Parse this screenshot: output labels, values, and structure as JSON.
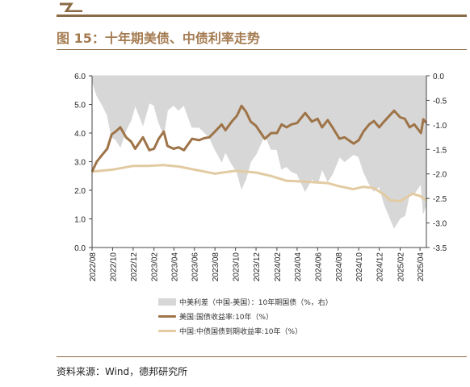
{
  "title": "图 15：十年期美债、中债利率走势",
  "source": "资料来源：Wind，德邦研究所",
  "colors": {
    "spread_fill": "#d7d7d7",
    "us_line": "#9e7448",
    "cn_line": "#e2cba2",
    "title": "#a57c52",
    "rule": "#8a6a44"
  },
  "legend": [
    {
      "key": "spread",
      "label": "中美利差（中国-美国）：10年期国债（%，右）"
    },
    {
      "key": "us",
      "label": "美国:国债收益率:10年（%）"
    },
    {
      "key": "cn",
      "label": "中国:中债国债到期收益率:10年（%）"
    }
  ],
  "chart_data": {
    "type": "line",
    "x_ticks": [
      "2022/08",
      "2022/10",
      "2022/12",
      "2023/02",
      "2023/04",
      "2023/06",
      "2023/08",
      "2023/10",
      "2023/12",
      "2024/02",
      "2024/04",
      "2024/06",
      "2024/08",
      "2024/10",
      "2024/12",
      "2025/02",
      "2025/04"
    ],
    "x_range": [
      "2022-08-01",
      "2025-04-20"
    ],
    "y_left": {
      "min": 0,
      "max": 6,
      "ticks": [
        "0.0",
        "1.0",
        "2.0",
        "3.0",
        "4.0",
        "5.0",
        "6.0"
      ]
    },
    "y_right": {
      "min": -3.5,
      "max": 0,
      "ticks": [
        "0.0",
        "-0.5",
        "-1.0",
        "-1.5",
        "-2.0",
        "-2.5",
        "-3.0",
        "-3.5"
      ]
    },
    "grid": false,
    "legend_position": "bottom",
    "series": [
      {
        "name": "美国:国债收益率:10年（%）",
        "axis": "left",
        "kind": "line",
        "x": [
          "2022-08-01",
          "2022-08-15",
          "2022-09-01",
          "2022-09-15",
          "2022-09-28",
          "2022-10-10",
          "2022-10-24",
          "2022-11-10",
          "2022-11-25",
          "2022-12-07",
          "2022-12-30",
          "2023-01-18",
          "2023-02-01",
          "2023-02-15",
          "2023-03-02",
          "2023-03-13",
          "2023-03-31",
          "2023-04-15",
          "2023-05-01",
          "2023-05-25",
          "2023-06-15",
          "2023-06-30",
          "2023-07-15",
          "2023-08-01",
          "2023-08-21",
          "2023-09-01",
          "2023-09-20",
          "2023-10-05",
          "2023-10-19",
          "2023-11-01",
          "2023-11-15",
          "2023-12-01",
          "2023-12-27",
          "2024-01-15",
          "2024-02-01",
          "2024-02-15",
          "2024-03-01",
          "2024-03-15",
          "2024-04-01",
          "2024-04-25",
          "2024-05-15",
          "2024-06-01",
          "2024-06-14",
          "2024-07-01",
          "2024-07-15",
          "2024-08-05",
          "2024-08-20",
          "2024-09-16",
          "2024-10-01",
          "2024-10-15",
          "2024-11-01",
          "2024-11-15",
          "2024-12-01",
          "2024-12-15",
          "2025-01-14",
          "2025-02-01",
          "2025-02-15",
          "2025-03-01",
          "2025-03-15",
          "2025-04-04",
          "2025-04-11",
          "2025-04-20"
        ],
        "y": [
          2.65,
          3.0,
          3.25,
          3.45,
          3.95,
          4.05,
          4.2,
          3.85,
          3.7,
          3.45,
          3.85,
          3.4,
          3.45,
          3.8,
          4.05,
          3.55,
          3.45,
          3.5,
          3.4,
          3.8,
          3.75,
          3.82,
          3.85,
          4.05,
          4.3,
          4.1,
          4.4,
          4.6,
          4.95,
          4.75,
          4.4,
          4.25,
          3.8,
          4.0,
          4.0,
          4.3,
          4.2,
          4.3,
          4.35,
          4.7,
          4.4,
          4.5,
          4.2,
          4.45,
          4.2,
          3.8,
          3.85,
          3.63,
          3.75,
          4.05,
          4.3,
          4.42,
          4.2,
          4.4,
          4.78,
          4.55,
          4.5,
          4.2,
          4.3,
          4.0,
          4.48,
          4.35
        ]
      },
      {
        "name": "中国:中债国债到期收益率:10年（%）",
        "axis": "left",
        "kind": "line",
        "x": [
          "2022-08-01",
          "2022-10-01",
          "2022-12-01",
          "2023-01-15",
          "2023-03-01",
          "2023-04-15",
          "2023-06-01",
          "2023-08-01",
          "2023-10-01",
          "2023-12-01",
          "2024-01-15",
          "2024-03-01",
          "2024-05-01",
          "2024-07-01",
          "2024-08-01",
          "2024-09-15",
          "2024-10-15",
          "2024-11-15",
          "2024-12-15",
          "2025-01-02",
          "2025-02-01",
          "2025-03-10",
          "2025-04-01",
          "2025-04-20"
        ],
        "y": [
          2.65,
          2.72,
          2.85,
          2.85,
          2.88,
          2.83,
          2.72,
          2.58,
          2.68,
          2.62,
          2.5,
          2.33,
          2.3,
          2.25,
          2.15,
          2.04,
          2.12,
          2.08,
          1.85,
          1.65,
          1.62,
          1.88,
          1.8,
          1.65
        ]
      },
      {
        "name": "中美利差（中国-美国）：10年期国债（%，右）",
        "axis": "right",
        "kind": "area",
        "x": [
          "2022-08-01",
          "2022-08-15",
          "2022-09-01",
          "2022-09-15",
          "2022-09-28",
          "2022-10-10",
          "2022-10-24",
          "2022-11-10",
          "2022-11-25",
          "2022-12-07",
          "2022-12-30",
          "2023-01-18",
          "2023-02-01",
          "2023-02-15",
          "2023-03-02",
          "2023-03-13",
          "2023-03-31",
          "2023-04-15",
          "2023-05-01",
          "2023-05-25",
          "2023-06-15",
          "2023-06-30",
          "2023-07-15",
          "2023-08-01",
          "2023-08-21",
          "2023-09-01",
          "2023-09-20",
          "2023-10-05",
          "2023-10-19",
          "2023-11-01",
          "2023-11-15",
          "2023-12-01",
          "2023-12-27",
          "2024-01-15",
          "2024-02-01",
          "2024-02-15",
          "2024-03-01",
          "2024-03-15",
          "2024-04-01",
          "2024-04-25",
          "2024-05-15",
          "2024-06-01",
          "2024-06-14",
          "2024-07-01",
          "2024-07-15",
          "2024-08-05",
          "2024-08-20",
          "2024-09-16",
          "2024-10-01",
          "2024-10-15",
          "2024-11-01",
          "2024-11-15",
          "2024-12-01",
          "2024-12-15",
          "2025-01-14",
          "2025-02-01",
          "2025-02-15",
          "2025-03-01",
          "2025-03-15",
          "2025-04-04",
          "2025-04-11",
          "2025-04-20"
        ],
        "y": [
          -0.1,
          -0.4,
          -0.6,
          -0.8,
          -1.25,
          -1.3,
          -1.45,
          -1.1,
          -0.9,
          -0.6,
          -1.0,
          -0.55,
          -0.6,
          -0.95,
          -1.2,
          -0.7,
          -0.6,
          -0.7,
          -0.6,
          -1.05,
          -1.05,
          -1.15,
          -1.25,
          -1.5,
          -1.75,
          -1.55,
          -1.8,
          -1.95,
          -2.3,
          -2.1,
          -1.75,
          -1.6,
          -1.2,
          -1.5,
          -1.5,
          -1.9,
          -1.85,
          -1.95,
          -2.0,
          -2.35,
          -2.1,
          -2.2,
          -1.9,
          -2.15,
          -2.0,
          -1.65,
          -1.75,
          -1.6,
          -1.65,
          -1.95,
          -2.2,
          -2.35,
          -2.25,
          -2.6,
          -3.1,
          -2.9,
          -2.85,
          -2.4,
          -2.4,
          -2.2,
          -2.8,
          -2.6
        ]
      }
    ]
  }
}
